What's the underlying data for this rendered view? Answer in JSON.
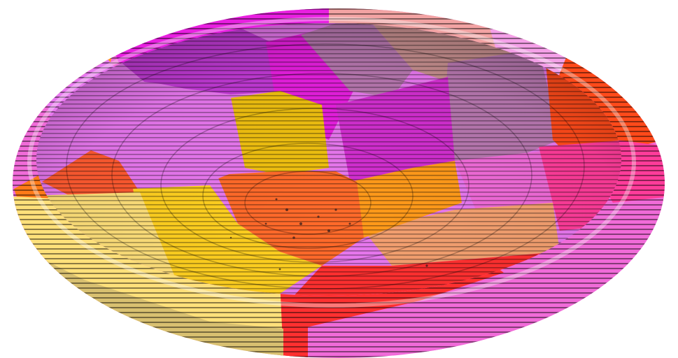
{
  "scene": {
    "subject": "segmented-voxel-bowl",
    "background_color": "#ffffff",
    "region_colors": {
      "magenta": "#e81fe0",
      "violet": "#c23ad6",
      "light_magenta": "#e878ef",
      "pink": "#f06bd8",
      "hot_pink": "#ff3c9a",
      "salmon_pink": "#f2a3a3",
      "dusty_rose": "#c89090",
      "mauve": "#b878b0",
      "red": "#ff3030",
      "red_orange": "#ff4a1a",
      "orange": "#ff7a18",
      "orange_red": "#ff5a30",
      "amber": "#ff9a1a",
      "gold": "#f0c010",
      "yellow": "#ffd020",
      "pale_yellow": "#ffe07a",
      "peach": "#f4a070",
      "rim_khaki": "#d8c070"
    }
  }
}
